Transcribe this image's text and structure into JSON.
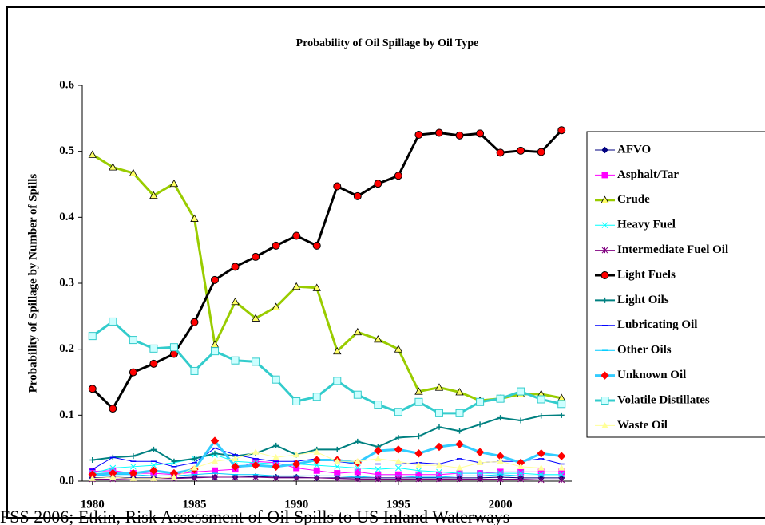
{
  "chart_data": {
    "type": "line",
    "title": "Probability of Oil Spillage by Oil Type",
    "y_label": "Probability of Spillage by Number of Spills",
    "caption": "FSS 2006; Etkin, Risk Assessment of Oil Spills to US Inland Waterways",
    "x": [
      1980,
      1981,
      1982,
      1983,
      1984,
      1985,
      1986,
      1987,
      1988,
      1989,
      1990,
      1991,
      1992,
      1993,
      1994,
      1995,
      1996,
      1997,
      1998,
      1999,
      2000,
      2001,
      2002,
      2003
    ],
    "xlim": [
      1979.5,
      2003.5
    ],
    "xticks": [
      1980,
      1985,
      1990,
      1995,
      2000
    ],
    "ylim": [
      0,
      0.6
    ],
    "yticks": [
      {
        "value": 0,
        "label": "0.0"
      },
      0.1,
      0.2,
      0.3,
      0.4,
      0.5,
      0.6
    ],
    "legend": "right",
    "series": [
      {
        "name": "AFVO",
        "color": "#000080",
        "marker": "diamond",
        "marker_color": "#000080",
        "width": 1,
        "values": [
          0.005,
          0.006,
          0.005,
          0.005,
          0.005,
          0.006,
          0.006,
          0.006,
          0.007,
          0.006,
          0.006,
          0.005,
          0.005,
          0.005,
          0.005,
          0.005,
          0.005,
          0.005,
          0.005,
          0.005,
          0.006,
          0.005,
          0.005,
          0.005
        ]
      },
      {
        "name": "Asphalt/Tar",
        "color": "#ff00ff",
        "marker": "square",
        "marker_color": "#ff00ff",
        "width": 1,
        "values": [
          0.015,
          0.016,
          0.012,
          0.012,
          0.01,
          0.014,
          0.016,
          0.018,
          0.03,
          0.028,
          0.02,
          0.016,
          0.012,
          0.014,
          0.01,
          0.01,
          0.01,
          0.01,
          0.012,
          0.012,
          0.014,
          0.014,
          0.014,
          0.014
        ]
      },
      {
        "name": "Crude",
        "color": "#99cc00",
        "marker": "triangle",
        "marker_color": "#ffff66",
        "width": 3,
        "values": [
          0.495,
          0.476,
          0.467,
          0.433,
          0.451,
          0.398,
          0.207,
          0.272,
          0.247,
          0.264,
          0.295,
          0.293,
          0.197,
          0.226,
          0.215,
          0.2,
          0.136,
          0.142,
          0.135,
          0.122,
          0.125,
          0.132,
          0.132,
          0.126
        ]
      },
      {
        "name": "Heavy Fuel",
        "color": "#00ffff",
        "marker": "x",
        "marker_color": "#00ffff",
        "width": 1,
        "values": [
          0.012,
          0.02,
          0.022,
          0.024,
          0.028,
          0.034,
          0.04,
          0.03,
          0.028,
          0.026,
          0.026,
          0.024,
          0.022,
          0.02,
          0.018,
          0.02,
          0.016,
          0.014,
          0.012,
          0.012,
          0.012,
          0.012,
          0.01,
          0.01
        ]
      },
      {
        "name": "Intermediate Fuel Oil",
        "color": "#800080",
        "marker": "asterisk",
        "marker_color": "#800080",
        "width": 1,
        "values": [
          0.003,
          0.003,
          0.004,
          0.004,
          0.004,
          0.005,
          0.006,
          0.006,
          0.006,
          0.005,
          0.005,
          0.005,
          0.004,
          0.003,
          0.003,
          0.003,
          0.003,
          0.003,
          0.003,
          0.003,
          0.003,
          0.003,
          0.002,
          0.002
        ]
      },
      {
        "name": "Light Fuels",
        "color": "#000000",
        "marker": "circle",
        "marker_color": "#ff0000",
        "width": 3,
        "values": [
          0.14,
          0.11,
          0.165,
          0.178,
          0.193,
          0.241,
          0.305,
          0.325,
          0.34,
          0.357,
          0.372,
          0.357,
          0.447,
          0.432,
          0.451,
          0.463,
          0.525,
          0.528,
          0.524,
          0.527,
          0.498,
          0.501,
          0.499,
          0.532
        ]
      },
      {
        "name": "Light Oils",
        "color": "#008080",
        "marker": "plus",
        "marker_color": "#008080",
        "width": 2,
        "values": [
          0.032,
          0.036,
          0.038,
          0.048,
          0.03,
          0.034,
          0.042,
          0.038,
          0.042,
          0.054,
          0.04,
          0.048,
          0.048,
          0.06,
          0.052,
          0.066,
          0.068,
          0.082,
          0.076,
          0.086,
          0.096,
          0.092,
          0.099,
          0.1
        ]
      },
      {
        "name": "Lubricating Oil",
        "color": "#0000ff",
        "marker": "dash",
        "marker_color": "#0000ff",
        "width": 1,
        "values": [
          0.018,
          0.036,
          0.03,
          0.03,
          0.022,
          0.028,
          0.05,
          0.04,
          0.034,
          0.03,
          0.03,
          0.034,
          0.03,
          0.026,
          0.026,
          0.026,
          0.028,
          0.026,
          0.034,
          0.028,
          0.03,
          0.03,
          0.034,
          0.026
        ]
      },
      {
        "name": "Other Oils",
        "color": "#00ccff",
        "marker": "dash",
        "marker_color": "#00ccff",
        "width": 1,
        "values": [
          0.008,
          0.01,
          0.01,
          0.008,
          0.008,
          0.01,
          0.012,
          0.01,
          0.01,
          0.008,
          0.008,
          0.008,
          0.008,
          0.006,
          0.008,
          0.008,
          0.006,
          0.006,
          0.008,
          0.008,
          0.01,
          0.008,
          0.008,
          0.008
        ]
      },
      {
        "name": "Unknown Oil",
        "color": "#33ccff",
        "marker": "diamond",
        "marker_color": "#ff0000",
        "width": 3,
        "values": [
          0.01,
          0.012,
          0.012,
          0.016,
          0.012,
          0.018,
          0.061,
          0.022,
          0.024,
          0.022,
          0.026,
          0.032,
          0.032,
          0.028,
          0.046,
          0.048,
          0.042,
          0.052,
          0.056,
          0.044,
          0.038,
          0.028,
          0.042,
          0.038
        ]
      },
      {
        "name": "Volatile Distillates",
        "color": "#33cccc",
        "marker": "square",
        "marker_color": "#ccffff",
        "width": 3,
        "values": [
          0.22,
          0.242,
          0.214,
          0.201,
          0.203,
          0.167,
          0.197,
          0.183,
          0.181,
          0.154,
          0.121,
          0.128,
          0.152,
          0.131,
          0.116,
          0.105,
          0.12,
          0.103,
          0.103,
          0.12,
          0.125,
          0.136,
          0.124,
          0.117
        ]
      },
      {
        "name": "Waste Oil",
        "color": "#ffff99",
        "marker": "triangle",
        "marker_color": "#ffff99",
        "width": 1,
        "values": [
          0.004,
          0.006,
          0.004,
          0.004,
          0.006,
          0.02,
          0.03,
          0.034,
          0.044,
          0.036,
          0.04,
          0.044,
          0.03,
          0.03,
          0.034,
          0.03,
          0.024,
          0.024,
          0.02,
          0.028,
          0.03,
          0.022,
          0.02,
          0.02
        ]
      }
    ]
  }
}
